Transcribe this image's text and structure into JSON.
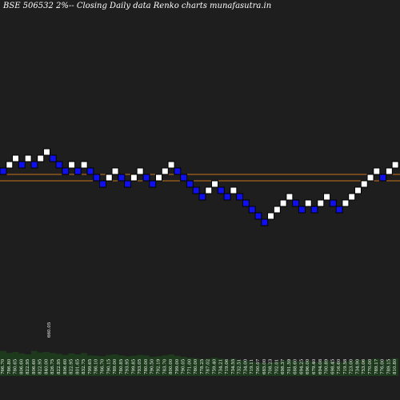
{
  "title": "BSE 506532  2%-- Closing Daily data  Renko  charts munafasutra.in",
  "colors": {
    "background": "#1e1e1e",
    "up_brick": "#ffffff",
    "down_brick": "#1010ee",
    "brick_border": "#000000",
    "ref_line": "#c8731c",
    "volume": "#1d3a1d",
    "labels": "#ffffff"
  },
  "chart_data": {
    "type": "renko",
    "title": "BSE 506532  2%-- Closing Daily data  Renko  charts munafasutra.in",
    "brick_size_pct": 2,
    "bricks": [
      {
        "level": 5,
        "dir": "down"
      },
      {
        "level": 6,
        "dir": "up"
      },
      {
        "level": 7,
        "dir": "up"
      },
      {
        "level": 6,
        "dir": "down"
      },
      {
        "level": 7,
        "dir": "up"
      },
      {
        "level": 6,
        "dir": "down"
      },
      {
        "level": 7,
        "dir": "up"
      },
      {
        "level": 8,
        "dir": "up"
      },
      {
        "level": 7,
        "dir": "down"
      },
      {
        "level": 6,
        "dir": "down"
      },
      {
        "level": 5,
        "dir": "down"
      },
      {
        "level": 6,
        "dir": "up"
      },
      {
        "level": 5,
        "dir": "down"
      },
      {
        "level": 6,
        "dir": "up"
      },
      {
        "level": 5,
        "dir": "down"
      },
      {
        "level": 4,
        "dir": "down"
      },
      {
        "level": 3,
        "dir": "down"
      },
      {
        "level": 4,
        "dir": "up"
      },
      {
        "level": 5,
        "dir": "up"
      },
      {
        "level": 4,
        "dir": "down"
      },
      {
        "level": 3,
        "dir": "down"
      },
      {
        "level": 4,
        "dir": "up"
      },
      {
        "level": 5,
        "dir": "up"
      },
      {
        "level": 4,
        "dir": "down"
      },
      {
        "level": 3,
        "dir": "down"
      },
      {
        "level": 4,
        "dir": "up"
      },
      {
        "level": 5,
        "dir": "up"
      },
      {
        "level": 6,
        "dir": "up"
      },
      {
        "level": 5,
        "dir": "down"
      },
      {
        "level": 4,
        "dir": "down"
      },
      {
        "level": 3,
        "dir": "down"
      },
      {
        "level": 2,
        "dir": "down"
      },
      {
        "level": 1,
        "dir": "down"
      },
      {
        "level": 2,
        "dir": "up"
      },
      {
        "level": 3,
        "dir": "up"
      },
      {
        "level": 2,
        "dir": "down"
      },
      {
        "level": 1,
        "dir": "down"
      },
      {
        "level": 2,
        "dir": "up"
      },
      {
        "level": 1,
        "dir": "down"
      },
      {
        "level": 0,
        "dir": "down"
      },
      {
        "level": -1,
        "dir": "down"
      },
      {
        "level": -2,
        "dir": "down"
      },
      {
        "level": -3,
        "dir": "down"
      },
      {
        "level": -2,
        "dir": "up"
      },
      {
        "level": -1,
        "dir": "up"
      },
      {
        "level": 0,
        "dir": "up"
      },
      {
        "level": 1,
        "dir": "up"
      },
      {
        "level": 0,
        "dir": "down"
      },
      {
        "level": -1,
        "dir": "down"
      },
      {
        "level": 0,
        "dir": "up"
      },
      {
        "level": -1,
        "dir": "down"
      },
      {
        "level": 0,
        "dir": "up"
      },
      {
        "level": 1,
        "dir": "up"
      },
      {
        "level": 0,
        "dir": "down"
      },
      {
        "level": -1,
        "dir": "down"
      },
      {
        "level": 0,
        "dir": "up"
      },
      {
        "level": 1,
        "dir": "up"
      },
      {
        "level": 2,
        "dir": "up"
      },
      {
        "level": 3,
        "dir": "up"
      },
      {
        "level": 4,
        "dir": "up"
      },
      {
        "level": 5,
        "dir": "up"
      },
      {
        "level": 4,
        "dir": "down"
      },
      {
        "level": 5,
        "dir": "up"
      },
      {
        "level": 6,
        "dir": "up"
      }
    ],
    "reference_lines": [
      4.5,
      3.5
    ],
    "volume": [
      52,
      48,
      50,
      47,
      45,
      52,
      49,
      50,
      48,
      46,
      44,
      47,
      45,
      48,
      43,
      42,
      41,
      44,
      45,
      43,
      41,
      42,
      44,
      43,
      40,
      41,
      43,
      45,
      42,
      40,
      38,
      37,
      35,
      36,
      38,
      36,
      34,
      36,
      33,
      32,
      30,
      28,
      26,
      28,
      30,
      32,
      34,
      31,
      30,
      32,
      29,
      30,
      32,
      30,
      29,
      30,
      32,
      34,
      33,
      35,
      36,
      33,
      35,
      37
    ],
    "x_labels": [
      "766.70",
      "786.80",
      "780.65",
      "806.60",
      "822.95",
      "806.60",
      "822.95",
      "840.00",
      "826.75",
      "822.95",
      "806.60",
      "822.95",
      "801.65",
      "832.75",
      "799.65",
      "786.10",
      "766.70",
      "790.15",
      "789.00",
      "780.85",
      "793.95",
      "799.85",
      "793.05",
      "780.00",
      "790.50",
      "792.19",
      "783.70",
      "800.00",
      "799.00",
      "790.05",
      "771.00",
      "780.00",
      "778.25",
      "787.02",
      "759.40",
      "734.21",
      "719.06",
      "734.55",
      "732.51",
      "734.00",
      "719.11",
      "700.07",
      "685.00",
      "708.23",
      "702.01",
      "698.37",
      "701.59",
      "688.60",
      "694.25",
      "696.00",
      "679.40",
      "694.08",
      "700.89",
      "698.45",
      "716.60",
      "719.58",
      "723.00",
      "734.90",
      "753.06",
      "770.00",
      "789.17",
      "776.00",
      "789.15",
      "810.80"
    ],
    "spike_label": "660.05",
    "grid": false
  }
}
